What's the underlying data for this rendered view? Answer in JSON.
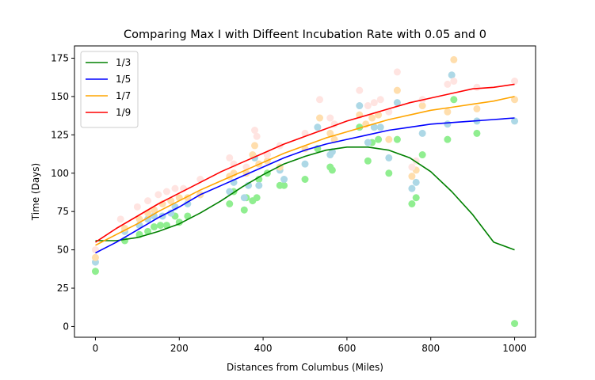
{
  "chart_data": {
    "type": "line",
    "title": "Comparing Max I with Diffeent Incubation Rate with 0.05 and 0",
    "xlabel": "Distances from Columbus (Miles)",
    "ylabel": "Time (Days)",
    "xlim": [
      -50,
      1050
    ],
    "ylim": [
      -7,
      183
    ],
    "xticks": [
      0,
      200,
      400,
      600,
      800,
      1000
    ],
    "yticks": [
      0,
      25,
      50,
      75,
      100,
      125,
      150,
      175
    ],
    "legend_position": "upper-left",
    "series": [
      {
        "name": "1/3",
        "color": "#008000",
        "point_color": "#90ee90",
        "line": [
          [
            0,
            56
          ],
          [
            50,
            56
          ],
          [
            100,
            58
          ],
          [
            150,
            62
          ],
          [
            200,
            67
          ],
          [
            250,
            74
          ],
          [
            300,
            82
          ],
          [
            350,
            91
          ],
          [
            400,
            99
          ],
          [
            450,
            106
          ],
          [
            500,
            111
          ],
          [
            550,
            115
          ],
          [
            600,
            117
          ],
          [
            650,
            117
          ],
          [
            700,
            115
          ],
          [
            750,
            110
          ],
          [
            800,
            101
          ],
          [
            850,
            88
          ],
          [
            900,
            73
          ],
          [
            950,
            55
          ],
          [
            1000,
            50
          ]
        ],
        "points": [
          [
            0,
            36
          ],
          [
            70,
            56
          ],
          [
            105,
            60
          ],
          [
            125,
            62
          ],
          [
            140,
            65
          ],
          [
            155,
            66
          ],
          [
            170,
            66
          ],
          [
            190,
            72
          ],
          [
            200,
            68
          ],
          [
            220,
            72
          ],
          [
            320,
            80
          ],
          [
            330,
            88
          ],
          [
            355,
            76
          ],
          [
            360,
            84
          ],
          [
            375,
            82
          ],
          [
            385,
            84
          ],
          [
            390,
            96
          ],
          [
            410,
            100
          ],
          [
            440,
            92
          ],
          [
            450,
            92
          ],
          [
            500,
            96
          ],
          [
            530,
            116
          ],
          [
            560,
            104
          ],
          [
            565,
            102
          ],
          [
            630,
            130
          ],
          [
            650,
            108
          ],
          [
            660,
            120
          ],
          [
            675,
            122
          ],
          [
            700,
            100
          ],
          [
            720,
            122
          ],
          [
            755,
            80
          ],
          [
            765,
            84
          ],
          [
            780,
            112
          ],
          [
            840,
            122
          ],
          [
            855,
            148
          ],
          [
            910,
            126
          ],
          [
            1000,
            2
          ]
        ]
      },
      {
        "name": "1/5",
        "color": "#0000ff",
        "point_color": "#add8e6",
        "line": [
          [
            0,
            48
          ],
          [
            50,
            55
          ],
          [
            100,
            63
          ],
          [
            150,
            71
          ],
          [
            200,
            78
          ],
          [
            250,
            86
          ],
          [
            300,
            92
          ],
          [
            350,
            98
          ],
          [
            400,
            104
          ],
          [
            450,
            110
          ],
          [
            500,
            115
          ],
          [
            550,
            119
          ],
          [
            600,
            122
          ],
          [
            650,
            125
          ],
          [
            700,
            128
          ],
          [
            750,
            130
          ],
          [
            800,
            132
          ],
          [
            850,
            133
          ],
          [
            900,
            134
          ],
          [
            950,
            135
          ],
          [
            1000,
            136
          ]
        ],
        "points": [
          [
            0,
            42
          ],
          [
            70,
            62
          ],
          [
            105,
            66
          ],
          [
            125,
            70
          ],
          [
            140,
            72
          ],
          [
            160,
            72
          ],
          [
            180,
            74
          ],
          [
            190,
            78
          ],
          [
            220,
            80
          ],
          [
            250,
            86
          ],
          [
            320,
            88
          ],
          [
            330,
            94
          ],
          [
            355,
            84
          ],
          [
            365,
            92
          ],
          [
            380,
            110
          ],
          [
            390,
            92
          ],
          [
            410,
            112
          ],
          [
            440,
            102
          ],
          [
            450,
            96
          ],
          [
            500,
            106
          ],
          [
            530,
            130
          ],
          [
            560,
            112
          ],
          [
            565,
            114
          ],
          [
            630,
            144
          ],
          [
            650,
            120
          ],
          [
            665,
            130
          ],
          [
            680,
            130
          ],
          [
            700,
            110
          ],
          [
            720,
            146
          ],
          [
            755,
            90
          ],
          [
            765,
            94
          ],
          [
            780,
            126
          ],
          [
            840,
            132
          ],
          [
            850,
            164
          ],
          [
            910,
            134
          ],
          [
            1000,
            134
          ]
        ]
      },
      {
        "name": "1/7",
        "color": "#ffa500",
        "point_color": "#ffdead",
        "line": [
          [
            0,
            53
          ],
          [
            50,
            60
          ],
          [
            100,
            67
          ],
          [
            150,
            75
          ],
          [
            200,
            82
          ],
          [
            250,
            89
          ],
          [
            300,
            95
          ],
          [
            350,
            101
          ],
          [
            400,
            107
          ],
          [
            450,
            113
          ],
          [
            500,
            118
          ],
          [
            550,
            123
          ],
          [
            600,
            127
          ],
          [
            650,
            131
          ],
          [
            700,
            135
          ],
          [
            750,
            138
          ],
          [
            800,
            141
          ],
          [
            850,
            143
          ],
          [
            900,
            145
          ],
          [
            950,
            147
          ],
          [
            1000,
            150
          ]
        ],
        "points": [
          [
            0,
            45
          ],
          [
            70,
            64
          ],
          [
            105,
            70
          ],
          [
            125,
            74
          ],
          [
            140,
            76
          ],
          [
            160,
            80
          ],
          [
            180,
            82
          ],
          [
            200,
            84
          ],
          [
            220,
            84
          ],
          [
            250,
            86
          ],
          [
            320,
            98
          ],
          [
            330,
            100
          ],
          [
            360,
            100
          ],
          [
            375,
            112
          ],
          [
            380,
            118
          ],
          [
            390,
            106
          ],
          [
            410,
            108
          ],
          [
            440,
            104
          ],
          [
            500,
            116
          ],
          [
            535,
            136
          ],
          [
            560,
            126
          ],
          [
            570,
            122
          ],
          [
            630,
            138
          ],
          [
            645,
            132
          ],
          [
            660,
            136
          ],
          [
            675,
            138
          ],
          [
            700,
            122
          ],
          [
            720,
            154
          ],
          [
            755,
            98
          ],
          [
            765,
            102
          ],
          [
            780,
            144
          ],
          [
            840,
            140
          ],
          [
            855,
            174
          ],
          [
            910,
            142
          ],
          [
            1000,
            148
          ]
        ]
      },
      {
        "name": "1/9",
        "color": "#ff0000",
        "point_color": "#ffe4e1",
        "line": [
          [
            0,
            55
          ],
          [
            50,
            64
          ],
          [
            100,
            72
          ],
          [
            150,
            80
          ],
          [
            200,
            87
          ],
          [
            250,
            94
          ],
          [
            300,
            101
          ],
          [
            350,
            107
          ],
          [
            400,
            113
          ],
          [
            450,
            119
          ],
          [
            500,
            124
          ],
          [
            550,
            129
          ],
          [
            600,
            134
          ],
          [
            650,
            138
          ],
          [
            700,
            142
          ],
          [
            750,
            146
          ],
          [
            800,
            149
          ],
          [
            850,
            152
          ],
          [
            900,
            155
          ],
          [
            950,
            156
          ],
          [
            1000,
            158
          ]
        ],
        "points": [
          [
            0,
            50
          ],
          [
            60,
            70
          ],
          [
            100,
            78
          ],
          [
            125,
            82
          ],
          [
            150,
            86
          ],
          [
            170,
            88
          ],
          [
            190,
            90
          ],
          [
            210,
            90
          ],
          [
            250,
            96
          ],
          [
            320,
            110
          ],
          [
            330,
            106
          ],
          [
            360,
            104
          ],
          [
            380,
            128
          ],
          [
            385,
            124
          ],
          [
            410,
            112
          ],
          [
            440,
            118
          ],
          [
            500,
            126
          ],
          [
            535,
            148
          ],
          [
            560,
            136
          ],
          [
            570,
            132
          ],
          [
            630,
            154
          ],
          [
            650,
            144
          ],
          [
            665,
            146
          ],
          [
            680,
            148
          ],
          [
            700,
            140
          ],
          [
            720,
            166
          ],
          [
            755,
            104
          ],
          [
            765,
            108
          ],
          [
            780,
            148
          ],
          [
            840,
            158
          ],
          [
            855,
            160
          ],
          [
            910,
            156
          ],
          [
            1000,
            160
          ]
        ]
      }
    ]
  }
}
